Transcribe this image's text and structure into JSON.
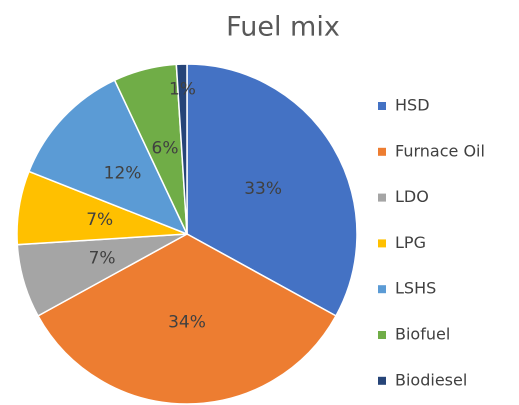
{
  "chart_data": {
    "type": "pie",
    "title": "Fuel mix",
    "categories": [
      "HSD",
      "Furnace Oil",
      "LDO",
      "LPG",
      "LSHS",
      "Biofuel",
      "Biodiesel"
    ],
    "values": [
      33,
      34,
      7,
      7,
      12,
      6,
      1
    ],
    "value_labels": [
      "33%",
      "34%",
      "7%",
      "7%",
      "12%",
      "6%",
      "1%"
    ],
    "colors": [
      "#4472c4",
      "#ed7d31",
      "#a5a5a5",
      "#ffc000",
      "#5b9bd5",
      "#70ad47",
      "#264478"
    ],
    "legend": "right"
  }
}
